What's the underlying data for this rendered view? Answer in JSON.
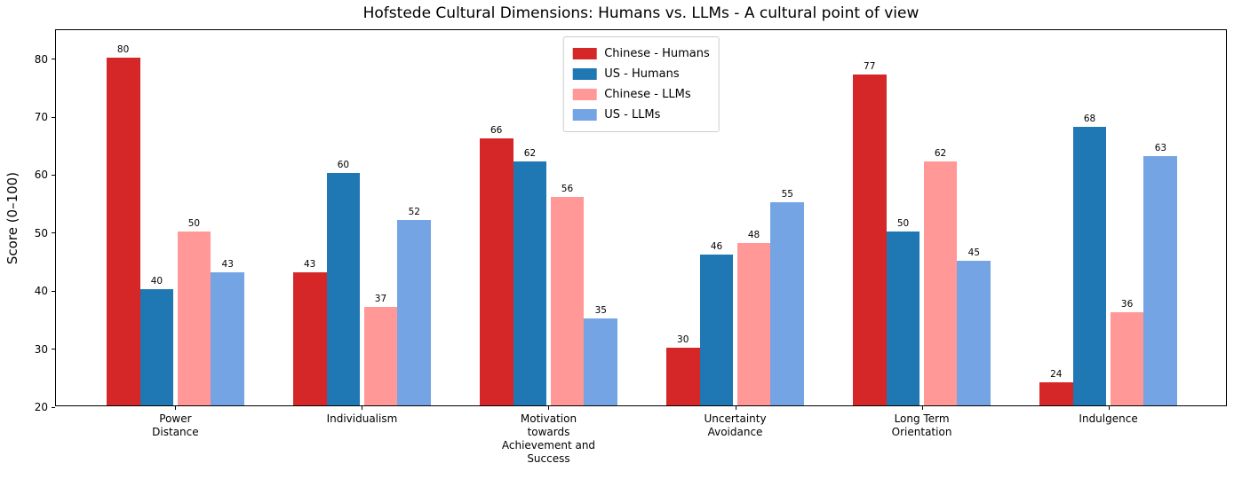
{
  "chart_data": {
    "type": "bar",
    "title": "Hofstede Cultural Dimensions: Humans vs. LLMs - A cultural point of view",
    "xlabel": "",
    "ylabel": "Score (0–100)",
    "ylim": [
      20,
      85
    ],
    "yticks": [
      20,
      30,
      40,
      50,
      60,
      70,
      80
    ],
    "grid": false,
    "legend_position": "upper center",
    "bar_value_labels": true,
    "categories": [
      {
        "label": "Power Distance",
        "lines": [
          "Power",
          "Distance"
        ]
      },
      {
        "label": "Individualism",
        "lines": [
          "Individualism"
        ]
      },
      {
        "label": "Motivation towards Achievement and Success",
        "lines": [
          "Motivation",
          "towards",
          "Achievement and",
          "Success"
        ]
      },
      {
        "label": "Uncertainty Avoidance",
        "lines": [
          "Uncertainty",
          "Avoidance"
        ]
      },
      {
        "label": "Long Term Orientation",
        "lines": [
          "Long Term",
          "Orientation"
        ]
      },
      {
        "label": "Indulgence",
        "lines": [
          "Indulgence"
        ]
      }
    ],
    "series": [
      {
        "name": "Chinese - Humans",
        "color": "#d62728",
        "values": [
          80,
          43,
          66,
          30,
          77,
          24
        ]
      },
      {
        "name": "US - Humans",
        "color": "#1f77b4",
        "values": [
          40,
          60,
          62,
          46,
          50,
          68
        ]
      },
      {
        "name": "Chinese - LLMs",
        "color": "#ff9896",
        "values": [
          50,
          37,
          56,
          48,
          62,
          36
        ]
      },
      {
        "name": "US - LLMs",
        "color": "#74a4e4",
        "values": [
          43,
          52,
          35,
          55,
          45,
          63
        ]
      }
    ]
  }
}
